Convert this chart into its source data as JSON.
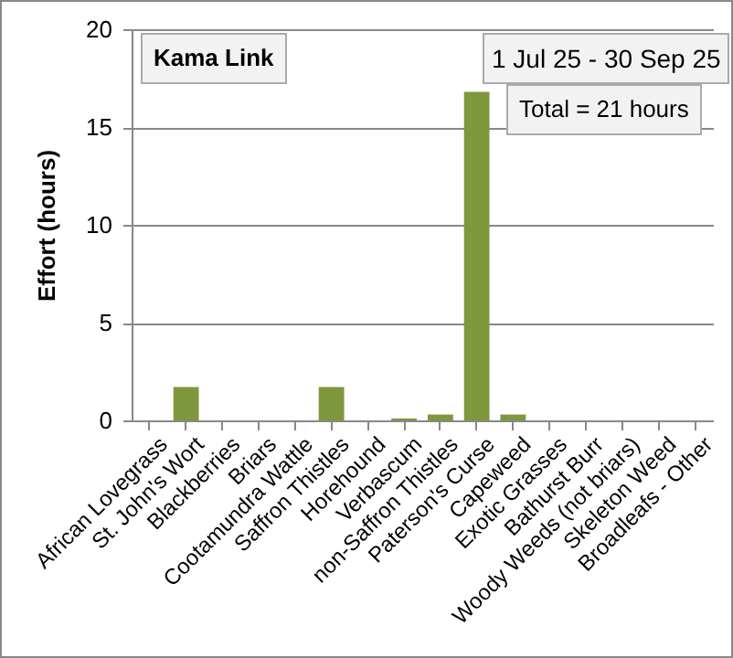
{
  "chart_data": {
    "type": "bar",
    "ylabel": "Effort  (hours)",
    "categories": [
      "African Lovegrass",
      "St. John's Wort",
      "Blackberries",
      "Briars",
      "Cootamundra Wattle",
      "Saffron Thistles",
      "Horehound",
      "Verbascum",
      "non-Saffron Thistles",
      "Paterson's Curse",
      "Capeweed",
      "Exotic Grasses",
      "Bathurst Burr",
      "Woody Weeds (not briars)",
      "Skeleton Weed",
      "Broadleafs - Other"
    ],
    "values": [
      0,
      1.7,
      0,
      0,
      0,
      1.7,
      0,
      0.1,
      0.3,
      16.8,
      0.3,
      0,
      0,
      0,
      0,
      0
    ],
    "color": "#7f973d",
    "ylim": [
      0,
      20
    ],
    "yticks": [
      0,
      5,
      10,
      15,
      20
    ],
    "grid": "y",
    "annotations": [
      "Kama Link",
      "1 Jul 25  -  30 Sep 25",
      "Total = 21 hours"
    ]
  }
}
